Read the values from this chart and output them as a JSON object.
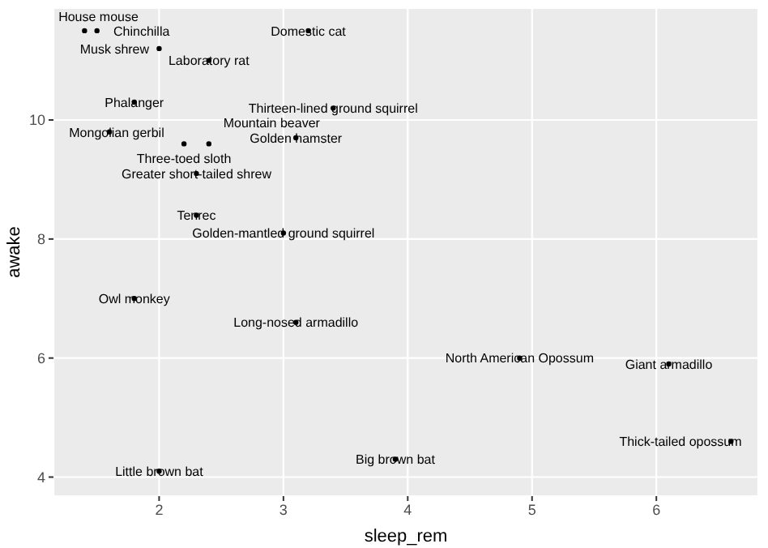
{
  "chart_data": {
    "type": "scatter",
    "xlabel": "sleep_rem",
    "ylabel": "awake",
    "xlim": [
      1.15,
      6.82
    ],
    "ylim": [
      3.68,
      11.88
    ],
    "xticks": [
      2,
      3,
      4,
      5,
      6
    ],
    "yticks": [
      4,
      6,
      8,
      10
    ],
    "grid": true,
    "marker": "circle",
    "series": [
      {
        "color": "#000000",
        "x": [
          1.4,
          1.5,
          2.0,
          2.4,
          3.2,
          1.8,
          3.4,
          1.6,
          2.2,
          2.4,
          3.1,
          2.3,
          2.3,
          3.0,
          1.8,
          3.1,
          4.9,
          6.1,
          6.6,
          3.9,
          2.0
        ],
        "values": [
          11.5,
          11.5,
          11.2,
          11.0,
          11.5,
          10.3,
          10.2,
          9.8,
          9.6,
          9.6,
          9.7,
          9.1,
          8.4,
          8.1,
          7.0,
          6.6,
          6.0,
          5.9,
          4.6,
          4.3,
          4.1
        ],
        "value_labels": [
          "House mouse",
          "Chinchilla",
          "Musk shrew",
          "Laboratory rat",
          "Domestic cat",
          "Phalanger",
          "Thirteen-lined ground squirrel",
          "Mongolian gerbil",
          "Three-toed sloth",
          "Mountain beaver",
          "Golden hamster",
          "Greater short-tailed shrew",
          "Tenrec",
          "Golden-mantled ground squirrel",
          "Owl monkey",
          "Long-nosed armadillo",
          "North American Opossum",
          "Giant armadillo",
          "Thick-tailed opossum",
          "Big brown bat",
          "Little brown bat"
        ]
      }
    ]
  }
}
